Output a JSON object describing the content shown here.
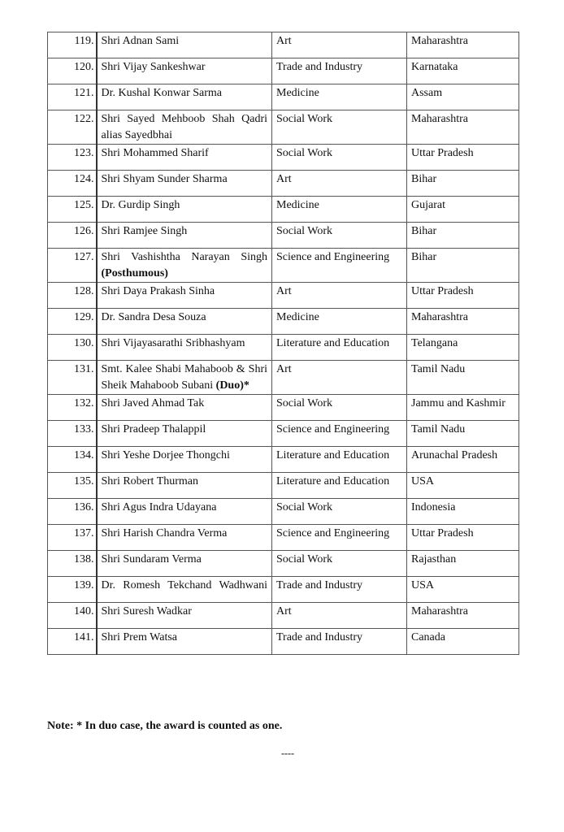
{
  "rows": [
    {
      "no": "119.",
      "name": "Shri Adnan Sami",
      "bold": "",
      "field": "Art",
      "state": "Maharashtra"
    },
    {
      "no": "120.",
      "name": "Shri Vijay Sankeshwar",
      "bold": "",
      "field": "Trade and Industry",
      "state": "Karnataka"
    },
    {
      "no": "121.",
      "name": "Dr. Kushal Konwar Sarma",
      "bold": "",
      "field": "Medicine",
      "state": "Assam"
    },
    {
      "no": "122.",
      "name": "Shri Sayed Mehboob Shah Qadri alias Sayedbhai",
      "bold": "",
      "field": "Social Work",
      "state": "Maharashtra"
    },
    {
      "no": "123.",
      "name": "Shri Mohammed Sharif",
      "bold": "",
      "field": "Social Work",
      "state": "Uttar Pradesh"
    },
    {
      "no": "124.",
      "name": "Shri Shyam Sunder Sharma",
      "bold": "",
      "field": "Art",
      "state": "Bihar"
    },
    {
      "no": "125.",
      "name": "Dr. Gurdip Singh",
      "bold": "",
      "field": "Medicine",
      "state": "Gujarat"
    },
    {
      "no": "126.",
      "name": "Shri Ramjee Singh",
      "bold": "",
      "field": "Social Work",
      "state": "Bihar"
    },
    {
      "no": "127.",
      "name": "Shri Vashishtha Narayan Singh",
      "bold": "(Posthumous)",
      "field": "Science and Engineering",
      "state": "Bihar"
    },
    {
      "no": "128.",
      "name": "Shri Daya Prakash Sinha",
      "bold": "",
      "field": "Art",
      "state": "Uttar Pradesh"
    },
    {
      "no": "129.",
      "name": "Dr. Sandra Desa Souza",
      "bold": "",
      "field": "Medicine",
      "state": "Maharashtra"
    },
    {
      "no": "130.",
      "name": "Shri Vijayasarathi Sribhashyam",
      "bold": "",
      "field": "Literature and Education",
      "state": "Telangana"
    },
    {
      "no": "131.",
      "name": "Smt. Kalee Shabi Mahaboob & Shri Sheik Mahaboob Subani",
      "bold": "(Duo)*",
      "field": "Art",
      "state": "Tamil Nadu"
    },
    {
      "no": "132.",
      "name": "Shri Javed Ahmad Tak",
      "bold": "",
      "field": "Social Work",
      "state": "Jammu and Kashmir"
    },
    {
      "no": "133.",
      "name": "Shri Pradeep Thalappil",
      "bold": "",
      "field": "Science and Engineering",
      "state": "Tamil Nadu"
    },
    {
      "no": "134.",
      "name": "Shri Yeshe Dorjee Thongchi",
      "bold": "",
      "field": "Literature and Education",
      "state": "Arunachal Pradesh"
    },
    {
      "no": "135.",
      "name": "Shri Robert Thurman",
      "bold": "",
      "field": "Literature and Education",
      "state": "USA"
    },
    {
      "no": "136.",
      "name": "Shri Agus Indra Udayana",
      "bold": "",
      "field": "Social Work",
      "state": "Indonesia"
    },
    {
      "no": "137.",
      "name": "Shri Harish Chandra Verma",
      "bold": "",
      "field": "Science and Engineering",
      "state": "Uttar Pradesh"
    },
    {
      "no": "138.",
      "name": "Shri Sundaram Verma",
      "bold": "",
      "field": "Social Work",
      "state": "Rajasthan"
    },
    {
      "no": "139.",
      "name": "Dr. Romesh Tekchand Wadhwani",
      "bold": "",
      "field": "Trade and Industry",
      "state": "USA"
    },
    {
      "no": "140.",
      "name": "Shri Suresh Wadkar",
      "bold": "",
      "field": "Art",
      "state": "Maharashtra"
    },
    {
      "no": "141.",
      "name": "Shri Prem Watsa",
      "bold": "",
      "field": "Trade and Industry",
      "state": "Canada"
    }
  ],
  "note": "Note:  * In duo case, the award is counted as one.",
  "end_mark": "----"
}
